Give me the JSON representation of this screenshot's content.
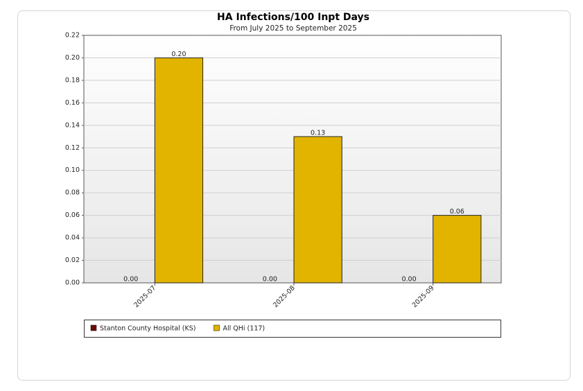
{
  "chart_data": {
    "type": "bar",
    "title": "HA Infections/100 Inpt Days",
    "subtitle": "From July 2025 to September 2025",
    "categories": [
      "2025-07",
      "2025-08",
      "2025-09"
    ],
    "series": [
      {
        "name": "Stanton County Hospital (KS)",
        "color": "#6b0a0a",
        "values": [
          0,
          0,
          0
        ],
        "value_labels": [
          "0.00",
          "0.00",
          "0.00"
        ]
      },
      {
        "name": "All QHi (117)",
        "color": "#e2b400",
        "values": [
          0.2,
          0.13,
          0.06
        ],
        "value_labels": [
          "0.20",
          "0.13",
          "0.06"
        ]
      }
    ],
    "ylim": [
      0,
      0.22
    ],
    "yticks": [
      {
        "value": 0,
        "label": "0.00"
      },
      0.02,
      0.04,
      0.06,
      0.08,
      {
        "value": 0.1,
        "label": "0.10"
      },
      0.12,
      0.14,
      0.16,
      0.18,
      {
        "value": 0.2,
        "label": "0.20"
      },
      0.22
    ],
    "grid": true
  }
}
